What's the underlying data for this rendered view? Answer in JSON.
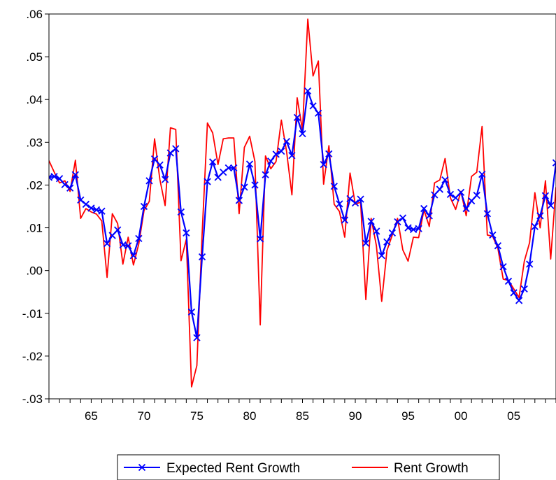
{
  "chart_data": {
    "type": "line",
    "title": "",
    "xlabel": "",
    "ylabel": "",
    "xlim": [
      1961,
      2009
    ],
    "ylim": [
      -0.03,
      0.06
    ],
    "y_ticks": [
      ".06",
      ".05",
      ".04",
      ".03",
      ".02",
      ".01",
      ".00",
      "-.01",
      "-.02",
      "-.03"
    ],
    "y_tick_values": [
      0.06,
      0.05,
      0.04,
      0.03,
      0.02,
      0.01,
      0.0,
      -0.01,
      -0.02,
      -0.03
    ],
    "x_ticks": [
      "65",
      "70",
      "75",
      "80",
      "85",
      "90",
      "95",
      "00",
      "05"
    ],
    "x_tick_values": [
      1965,
      1970,
      1975,
      1980,
      1985,
      1990,
      1995,
      2000,
      2005
    ],
    "grid": false,
    "legend_position": "bottom-center",
    "series": [
      {
        "name": "Expected Rent Growth",
        "color": "#0000ff",
        "marker": "x",
        "points": [
          [
            1961.0,
            0.0218
          ],
          [
            1961.5,
            0.022
          ],
          [
            1962.0,
            0.0215
          ],
          [
            1962.5,
            0.0201
          ],
          [
            1963.0,
            0.0193
          ],
          [
            1963.5,
            0.0224
          ],
          [
            1964.0,
            0.0165
          ],
          [
            1964.5,
            0.0155
          ],
          [
            1965.0,
            0.0146
          ],
          [
            1965.5,
            0.0142
          ],
          [
            1966.0,
            0.0139
          ],
          [
            1966.5,
            0.0063
          ],
          [
            1967.0,
            0.0082
          ],
          [
            1967.5,
            0.0095
          ],
          [
            1968.0,
            0.006
          ],
          [
            1968.5,
            0.0058
          ],
          [
            1969.0,
            0.0035
          ],
          [
            1969.5,
            0.0075
          ],
          [
            1970.0,
            0.015
          ],
          [
            1970.5,
            0.021
          ],
          [
            1971.0,
            0.0261
          ],
          [
            1971.5,
            0.0247
          ],
          [
            1972.0,
            0.0213
          ],
          [
            1972.5,
            0.0275
          ],
          [
            1973.0,
            0.0285
          ],
          [
            1973.5,
            0.0137
          ],
          [
            1974.0,
            0.0088
          ],
          [
            1974.5,
            -0.0097
          ],
          [
            1975.0,
            -0.0157
          ],
          [
            1975.5,
            0.0032
          ],
          [
            1976.0,
            0.0208
          ],
          [
            1976.5,
            0.0254
          ],
          [
            1977.0,
            0.0218
          ],
          [
            1977.5,
            0.023
          ],
          [
            1978.0,
            0.024
          ],
          [
            1978.5,
            0.024
          ],
          [
            1979.0,
            0.0164
          ],
          [
            1979.5,
            0.0195
          ],
          [
            1980.0,
            0.0249
          ],
          [
            1980.5,
            0.02
          ],
          [
            1981.0,
            0.0074
          ],
          [
            1981.5,
            0.0224
          ],
          [
            1982.0,
            0.0256
          ],
          [
            1982.5,
            0.0272
          ],
          [
            1983.0,
            0.0279
          ],
          [
            1983.5,
            0.0302
          ],
          [
            1984.0,
            0.0269
          ],
          [
            1984.5,
            0.0358
          ],
          [
            1985.0,
            0.032
          ],
          [
            1985.5,
            0.042
          ],
          [
            1986.0,
            0.0385
          ],
          [
            1986.5,
            0.0368
          ],
          [
            1987.0,
            0.0248
          ],
          [
            1987.5,
            0.0273
          ],
          [
            1988.0,
            0.0197
          ],
          [
            1988.5,
            0.0156
          ],
          [
            1989.0,
            0.0118
          ],
          [
            1989.5,
            0.0168
          ],
          [
            1990.0,
            0.0158
          ],
          [
            1990.5,
            0.0167
          ],
          [
            1991.0,
            0.0064
          ],
          [
            1991.5,
            0.0115
          ],
          [
            1992.0,
            0.0092
          ],
          [
            1992.5,
            0.0035
          ],
          [
            1993.0,
            0.0067
          ],
          [
            1993.5,
            0.0088
          ],
          [
            1994.0,
            0.0114
          ],
          [
            1994.5,
            0.0123
          ],
          [
            1995.0,
            0.01
          ],
          [
            1995.5,
            0.0096
          ],
          [
            1996.0,
            0.0098
          ],
          [
            1996.5,
            0.0145
          ],
          [
            1997.0,
            0.0128
          ],
          [
            1997.5,
            0.0177
          ],
          [
            1998.0,
            0.019
          ],
          [
            1998.5,
            0.0212
          ],
          [
            1999.0,
            0.0178
          ],
          [
            1999.5,
            0.017
          ],
          [
            2000.0,
            0.0183
          ],
          [
            2000.5,
            0.0145
          ],
          [
            2001.0,
            0.0163
          ],
          [
            2001.5,
            0.0176
          ],
          [
            2002.0,
            0.0225
          ],
          [
            2002.5,
            0.0133
          ],
          [
            2003.0,
            0.0083
          ],
          [
            2003.5,
            0.0058
          ],
          [
            2004.0,
            0.0009
          ],
          [
            2004.5,
            -0.0025
          ],
          [
            2005.0,
            -0.0052
          ],
          [
            2005.5,
            -0.007
          ],
          [
            2006.0,
            -0.0043
          ],
          [
            2006.5,
            0.0015
          ],
          [
            2007.0,
            0.0103
          ],
          [
            2007.5,
            0.0128
          ],
          [
            2008.0,
            0.0175
          ],
          [
            2008.5,
            0.0152
          ],
          [
            2009.0,
            0.0252
          ]
        ]
      },
      {
        "name": "Rent Growth",
        "color": "#ff0000",
        "marker": "none",
        "points": [
          [
            1961.0,
            0.0257
          ],
          [
            1961.5,
            0.023
          ],
          [
            1962.0,
            0.0205
          ],
          [
            1962.5,
            0.021
          ],
          [
            1963.0,
            0.0185
          ],
          [
            1963.5,
            0.0258
          ],
          [
            1964.0,
            0.0122
          ],
          [
            1964.5,
            0.0145
          ],
          [
            1965.0,
            0.0137
          ],
          [
            1965.5,
            0.0132
          ],
          [
            1966.0,
            0.0116
          ],
          [
            1966.5,
            -0.0016
          ],
          [
            1967.0,
            0.0133
          ],
          [
            1967.5,
            0.011
          ],
          [
            1968.0,
            0.0015
          ],
          [
            1968.5,
            0.0078
          ],
          [
            1969.0,
            0.0013
          ],
          [
            1969.5,
            0.0062
          ],
          [
            1970.0,
            0.014
          ],
          [
            1970.5,
            0.0162
          ],
          [
            1971.0,
            0.0308
          ],
          [
            1971.5,
            0.0213
          ],
          [
            1972.0,
            0.0152
          ],
          [
            1972.5,
            0.0334
          ],
          [
            1973.0,
            0.033
          ],
          [
            1973.5,
            0.0023
          ],
          [
            1974.0,
            0.0073
          ],
          [
            1974.5,
            -0.0272
          ],
          [
            1975.0,
            -0.0222
          ],
          [
            1975.5,
            0.0085
          ],
          [
            1976.0,
            0.0345
          ],
          [
            1976.5,
            0.0322
          ],
          [
            1977.0,
            0.0248
          ],
          [
            1977.5,
            0.0308
          ],
          [
            1978.0,
            0.031
          ],
          [
            1978.5,
            0.031
          ],
          [
            1979.0,
            0.0133
          ],
          [
            1979.5,
            0.0288
          ],
          [
            1980.0,
            0.0314
          ],
          [
            1980.5,
            0.0255
          ],
          [
            1981.0,
            -0.0127
          ],
          [
            1981.5,
            0.0268
          ],
          [
            1982.0,
            0.0238
          ],
          [
            1982.5,
            0.0255
          ],
          [
            1983.0,
            0.0352
          ],
          [
            1983.5,
            0.0278
          ],
          [
            1984.0,
            0.0177
          ],
          [
            1984.5,
            0.0404
          ],
          [
            1985.0,
            0.0328
          ],
          [
            1985.5,
            0.0588
          ],
          [
            1986.0,
            0.0455
          ],
          [
            1986.5,
            0.049
          ],
          [
            1987.0,
            0.0202
          ],
          [
            1987.5,
            0.0292
          ],
          [
            1988.0,
            0.0155
          ],
          [
            1988.5,
            0.0138
          ],
          [
            1989.0,
            0.0078
          ],
          [
            1989.5,
            0.0228
          ],
          [
            1990.0,
            0.0155
          ],
          [
            1990.5,
            0.016
          ],
          [
            1991.0,
            -0.0068
          ],
          [
            1991.5,
            0.0122
          ],
          [
            1992.0,
            0.0058
          ],
          [
            1992.5,
            -0.0072
          ],
          [
            1993.0,
            0.0047
          ],
          [
            1993.5,
            0.0083
          ],
          [
            1994.0,
            0.0122
          ],
          [
            1994.5,
            0.0048
          ],
          [
            1995.0,
            0.0022
          ],
          [
            1995.5,
            0.0078
          ],
          [
            1996.0,
            0.0077
          ],
          [
            1996.5,
            0.0142
          ],
          [
            1997.0,
            0.0103
          ],
          [
            1997.5,
            0.0205
          ],
          [
            1998.0,
            0.0212
          ],
          [
            1998.5,
            0.0262
          ],
          [
            1999.0,
            0.017
          ],
          [
            1999.5,
            0.0143
          ],
          [
            2000.0,
            0.0185
          ],
          [
            2000.5,
            0.0128
          ],
          [
            2001.0,
            0.022
          ],
          [
            2001.5,
            0.023
          ],
          [
            2002.0,
            0.0337
          ],
          [
            2002.5,
            0.0083
          ],
          [
            2003.0,
            0.008
          ],
          [
            2003.5,
            0.0052
          ],
          [
            2004.0,
            -0.002
          ],
          [
            2004.5,
            -0.0023
          ],
          [
            2005.0,
            -0.0043
          ],
          [
            2005.5,
            -0.0063
          ],
          [
            2006.0,
            0.0022
          ],
          [
            2006.5,
            0.0065
          ],
          [
            2007.0,
            0.0182
          ],
          [
            2007.5,
            0.01
          ],
          [
            2008.0,
            0.021
          ],
          [
            2008.5,
            0.0027
          ],
          [
            2009.0,
            0.0195
          ]
        ]
      }
    ]
  }
}
